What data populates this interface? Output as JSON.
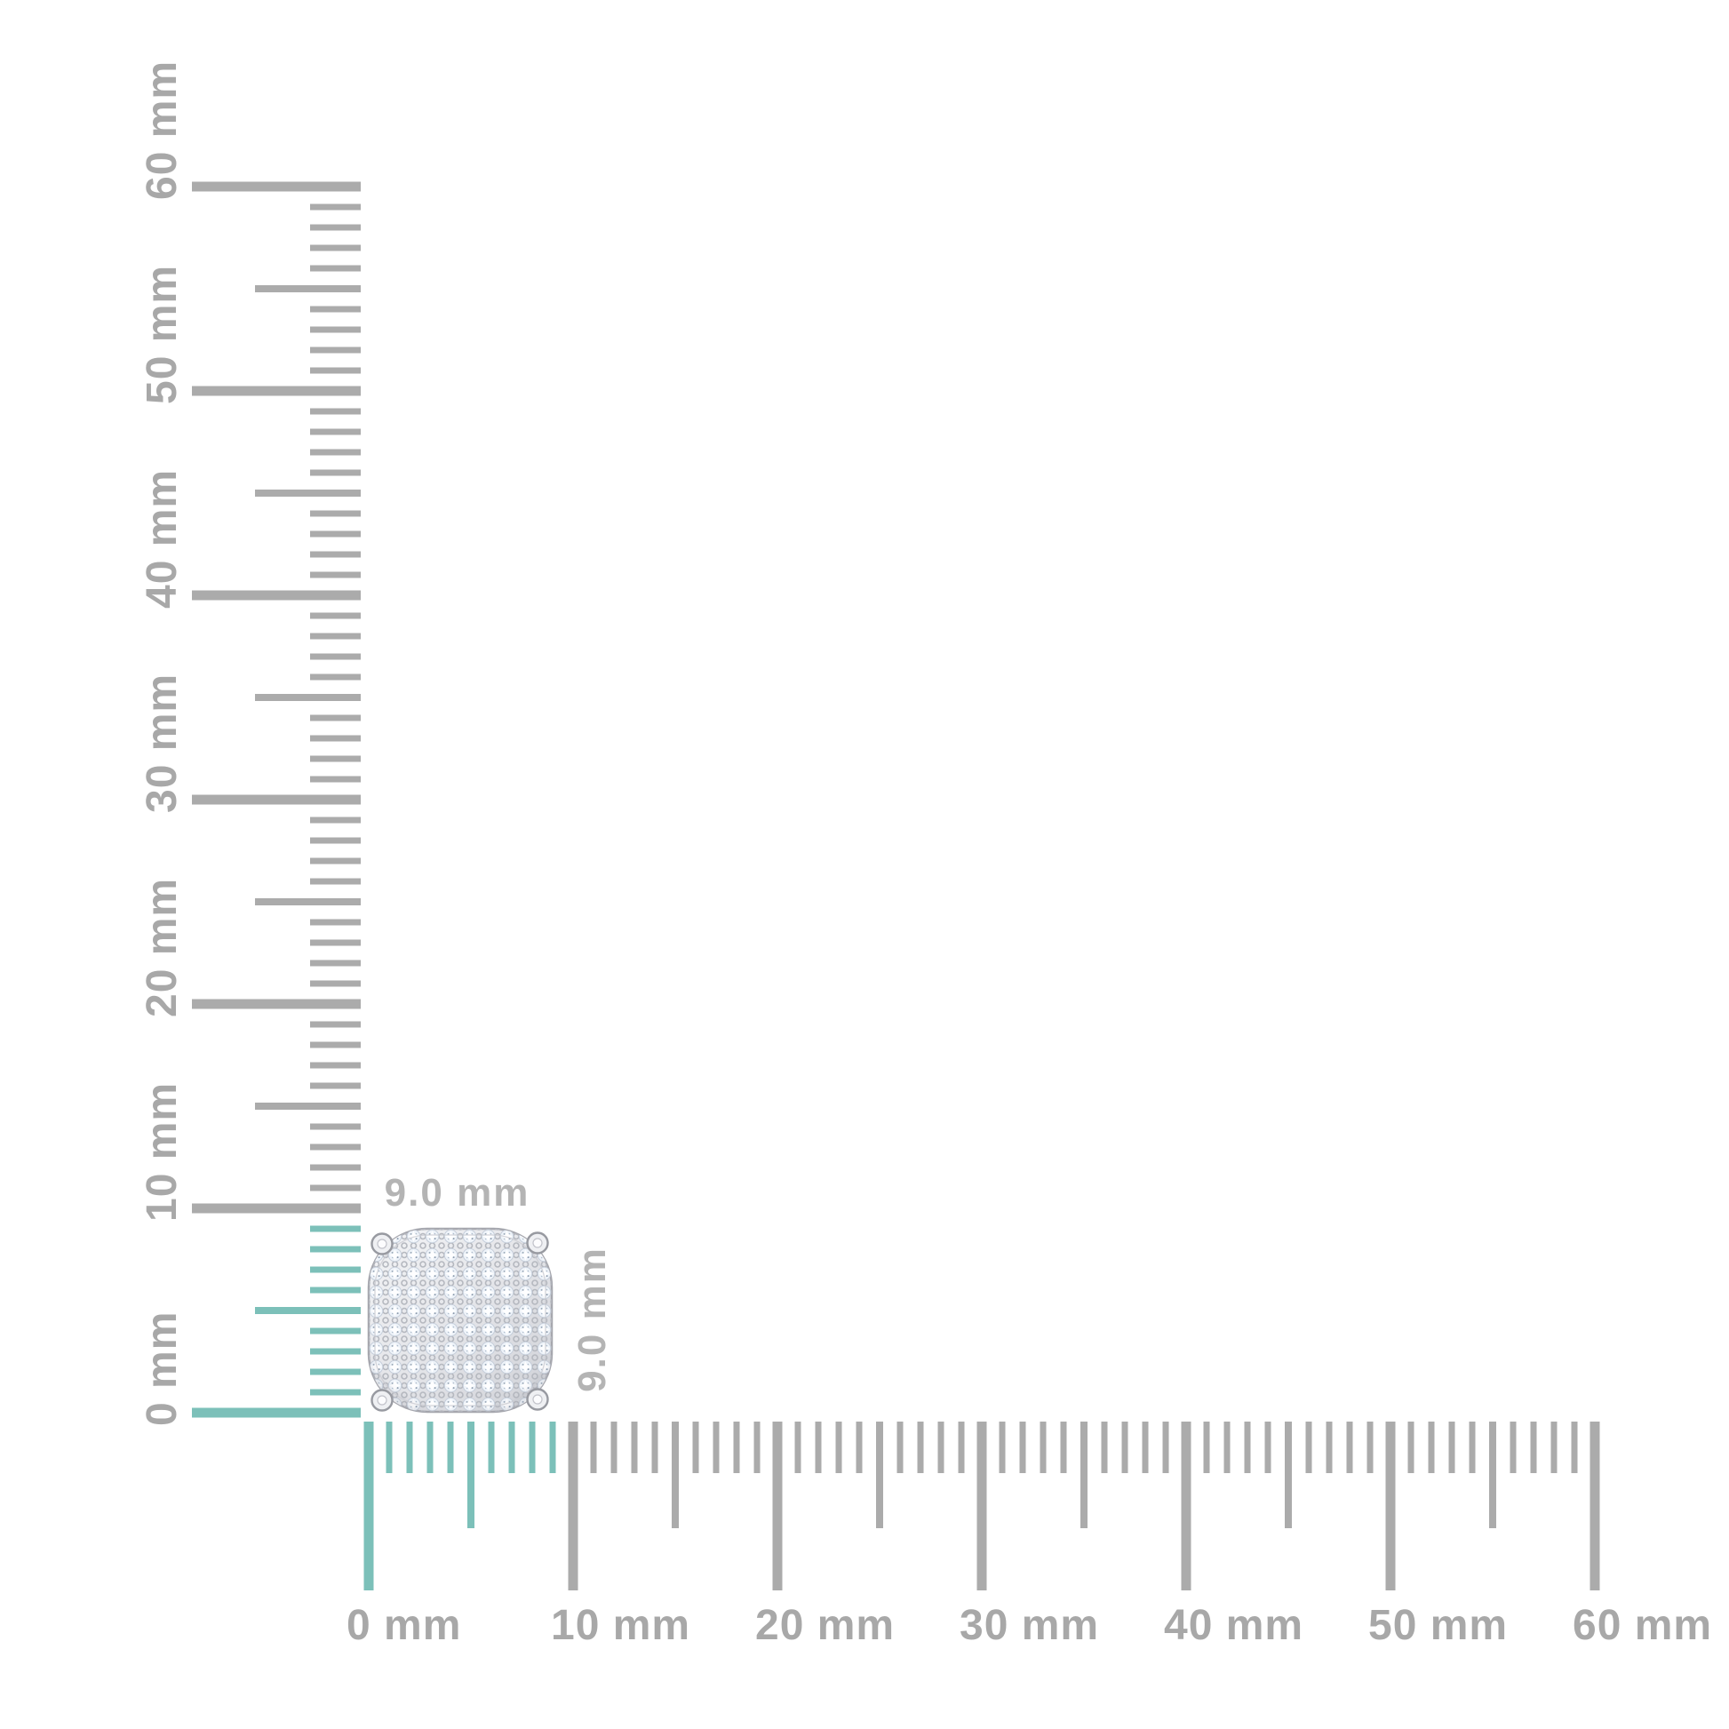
{
  "canvas": {
    "background": "#ffffff"
  },
  "item": {
    "name": "pave-cushion-stud-earring",
    "width_label": "9.0 mm",
    "height_label": "9.0 mm",
    "width_mm": 9.0,
    "height_mm": 9.0
  },
  "rulers": {
    "unit": "mm",
    "max_mm": 60,
    "minor_step_mm": 1,
    "half_step_mm": 5,
    "major_step_mm": 10,
    "highlight_max_mm": 9,
    "vertical": {
      "labels": [
        "0 mm",
        "10 mm",
        "20 mm",
        "30 mm",
        "40 mm",
        "50 mm",
        "60 mm"
      ]
    },
    "horizontal": {
      "labels": [
        "0 mm",
        "10 mm",
        "20 mm",
        "30 mm",
        "40 mm",
        "50 mm",
        "60 mm"
      ]
    }
  },
  "colors": {
    "tick_gray": "#ababab",
    "tick_highlight_teal": "#7cc0b9",
    "ruler_label_gray": "#a8a8a8",
    "item_label_gray": "#b4b4b4",
    "earring_silver": "#e4e5e9",
    "earring_edge": "#a6a7ae",
    "diamond_white": "#eef3f9"
  }
}
